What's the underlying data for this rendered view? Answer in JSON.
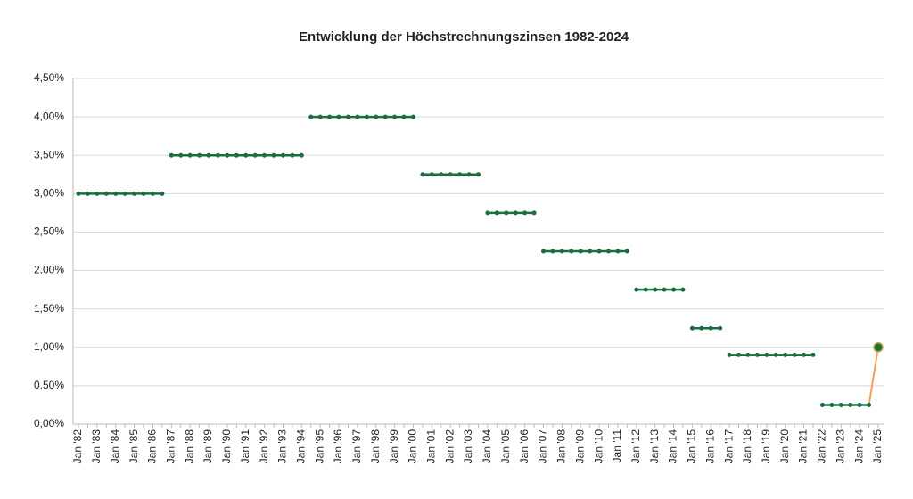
{
  "chart_data": {
    "type": "line",
    "title": "Entwicklung der Höchstrechnungszinsen 1982-2024",
    "categories": [
      "Jan '82",
      null,
      "Jan '83",
      null,
      "Jan '84",
      null,
      "Jan '85",
      null,
      "Jan '86",
      null,
      "Jan '87",
      null,
      "Jan '88",
      null,
      "Jan '89",
      null,
      "Jan '90",
      null,
      "Jan '91",
      null,
      "Jan '92",
      null,
      "Jan '93",
      null,
      "Jan '94",
      null,
      "Jan '95",
      null,
      "Jan '96",
      null,
      "Jan '97",
      null,
      "Jan '98",
      null,
      "Jan '99",
      null,
      "Jan '00",
      null,
      "Jan '01",
      null,
      "Jan '02",
      null,
      "Jan '03",
      null,
      "Jan '04",
      null,
      "Jan '05",
      null,
      "Jan '06",
      null,
      "Jan '07",
      null,
      "Jan '08",
      null,
      "Jan '09",
      null,
      "Jan '10",
      null,
      "Jan '11",
      null,
      "Jan '12",
      null,
      "Jan '13",
      null,
      "Jan '14",
      null,
      "Jan '15",
      null,
      "Jan '16",
      null,
      "Jan '17",
      null,
      "Jan '18",
      null,
      "Jan '19",
      null,
      "Jan '20",
      null,
      "Jan '21",
      null,
      "Jan '22",
      null,
      "Jan '23",
      null,
      "Jan '24",
      null,
      "Jan '25"
    ],
    "series": [
      {
        "color": "#1b6e3f",
        "values": [
          3,
          3,
          3,
          3,
          3,
          3,
          3,
          3,
          3,
          3,
          3.5,
          3.5,
          3.5,
          3.5,
          3.5,
          3.5,
          3.5,
          3.5,
          3.5,
          3.5,
          3.5,
          3.5,
          3.5,
          3.5,
          3.5,
          4,
          4,
          4,
          4,
          4,
          4,
          4,
          4,
          4,
          4,
          4,
          4,
          3.25,
          3.25,
          3.25,
          3.25,
          3.25,
          3.25,
          3.25,
          2.75,
          2.75,
          2.75,
          2.75,
          2.75,
          2.75,
          2.25,
          2.25,
          2.25,
          2.25,
          2.25,
          2.25,
          2.25,
          2.25,
          2.25,
          2.25,
          1.75,
          1.75,
          1.75,
          1.75,
          1.75,
          1.75,
          1.25,
          1.25,
          1.25,
          1.25,
          0.9,
          0.9,
          0.9,
          0.9,
          0.9,
          0.9,
          0.9,
          0.9,
          0.9,
          0.9,
          0.25,
          0.25,
          0.25,
          0.25,
          0.25,
          0.25,
          1
        ]
      }
    ],
    "break_on_change": true,
    "connect_last_change": true,
    "change_line_color": "#f0a060",
    "ylim": [
      0,
      4.5
    ],
    "yticks": [
      {
        "value": 0,
        "label": "0,00%"
      },
      {
        "value": 0.5,
        "label": "0,50%"
      },
      {
        "value": 1,
        "label": "1,00%"
      },
      {
        "value": 1.5,
        "label": "1,50%"
      },
      {
        "value": 2,
        "label": "2,00%"
      },
      {
        "value": 2.5,
        "label": "2,50%"
      },
      {
        "value": 3,
        "label": "3,00%"
      },
      {
        "value": 3.5,
        "label": "3,50%"
      },
      {
        "value": 4,
        "label": "4,00%"
      },
      {
        "value": 4.5,
        "label": "4,50%"
      }
    ],
    "grid": true
  }
}
